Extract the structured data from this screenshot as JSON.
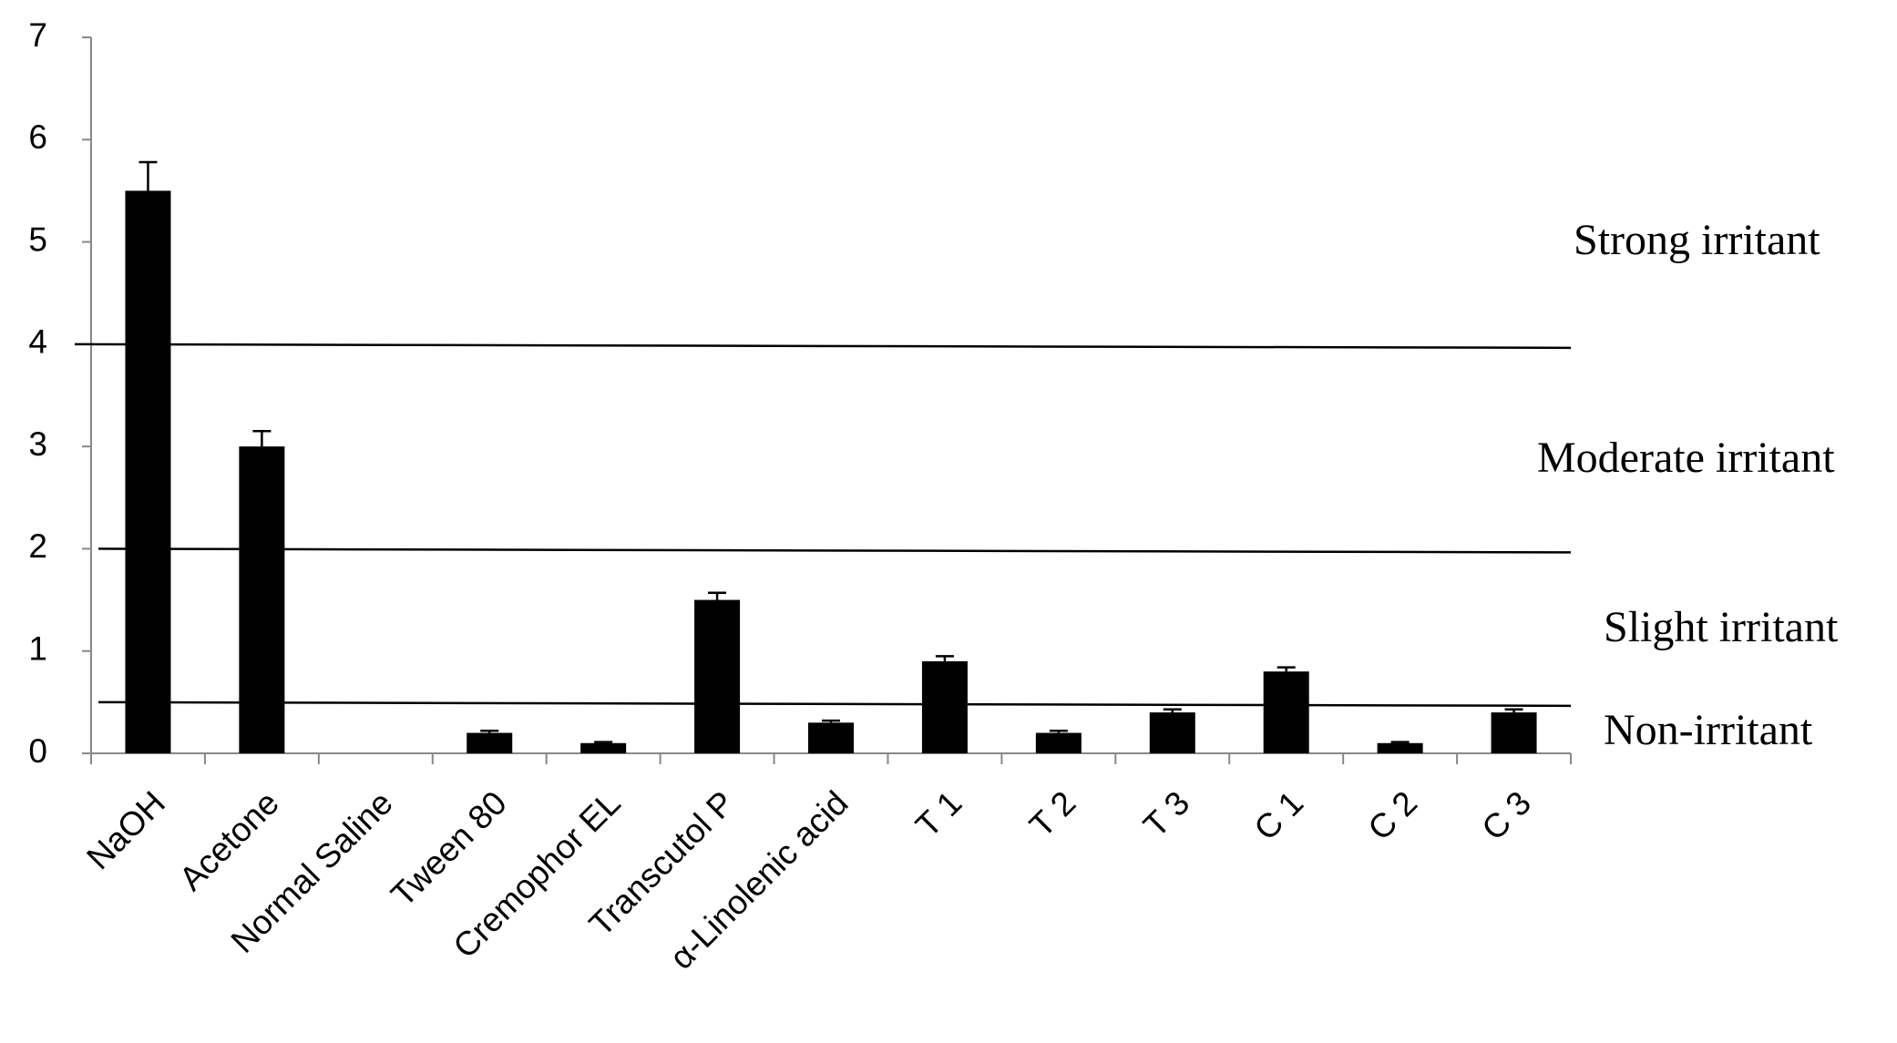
{
  "chart_data": {
    "type": "bar",
    "categories": [
      "NaOH",
      "Acetone",
      "Normal Saline",
      "Tween 80",
      "Cremophor EL",
      "Transcutol P",
      "α-Linolenic acid",
      "T 1",
      "T 2",
      "T 3",
      "C 1",
      "C 2",
      "C 3"
    ],
    "values": [
      5.5,
      3.0,
      0,
      0.2,
      0.1,
      1.5,
      0.3,
      0.9,
      0.2,
      0.4,
      0.8,
      0.1,
      0.4
    ],
    "errors": [
      0.28,
      0.15,
      0,
      0.02,
      0.01,
      0.07,
      0.02,
      0.05,
      0.02,
      0.03,
      0.04,
      0.01,
      0.03
    ],
    "color": "#000000",
    "ylim": [
      0,
      7
    ],
    "yticks": [
      0,
      1,
      2,
      3,
      4,
      5,
      6,
      7
    ],
    "thresholds": [
      4,
      2,
      0.5
    ],
    "annotations": [
      "Strong irritant",
      "Moderate irritant",
      "Slight irritant",
      "Non-irritant"
    ]
  }
}
